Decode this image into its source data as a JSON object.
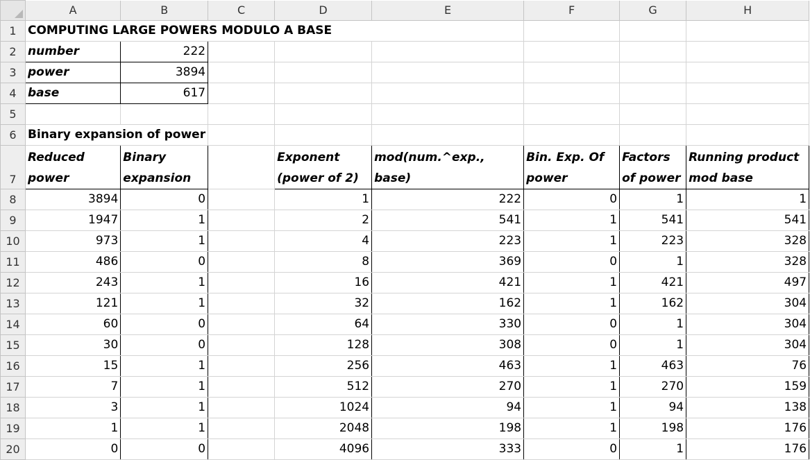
{
  "columns": [
    "A",
    "B",
    "C",
    "D",
    "E",
    "F",
    "G",
    "H"
  ],
  "rows": [
    "1",
    "2",
    "3",
    "4",
    "5",
    "6",
    "7",
    "8",
    "9",
    "10",
    "11",
    "12",
    "13",
    "14",
    "15",
    "16",
    "17",
    "18",
    "19",
    "20"
  ],
  "title": "COMPUTING LARGE POWERS MODULO A BASE",
  "inputs": [
    {
      "label": "number",
      "value": "222"
    },
    {
      "label": "power",
      "value": "3894"
    },
    {
      "label": "base",
      "value": "617"
    }
  ],
  "section_label": "Binary expansion of power",
  "headers": {
    "a": "Reduced power",
    "b": "Binary expansion",
    "d": "Exponent (power of 2)",
    "e": "mod(num.^exp., base)",
    "f": "Bin. Exp. Of power",
    "g": "Factors of power",
    "h": "Running product mod base"
  },
  "data_rows": [
    [
      "3894",
      "0",
      "1",
      "222",
      "0",
      "1",
      "1"
    ],
    [
      "1947",
      "1",
      "2",
      "541",
      "1",
      "541",
      "541"
    ],
    [
      "973",
      "1",
      "4",
      "223",
      "1",
      "223",
      "328"
    ],
    [
      "486",
      "0",
      "8",
      "369",
      "0",
      "1",
      "328"
    ],
    [
      "243",
      "1",
      "16",
      "421",
      "1",
      "421",
      "497"
    ],
    [
      "121",
      "1",
      "32",
      "162",
      "1",
      "162",
      "304"
    ],
    [
      "60",
      "0",
      "64",
      "330",
      "0",
      "1",
      "304"
    ],
    [
      "30",
      "0",
      "128",
      "308",
      "0",
      "1",
      "304"
    ],
    [
      "15",
      "1",
      "256",
      "463",
      "1",
      "463",
      "76"
    ],
    [
      "7",
      "1",
      "512",
      "270",
      "1",
      "270",
      "159"
    ],
    [
      "3",
      "1",
      "1024",
      "94",
      "1",
      "94",
      "138"
    ],
    [
      "1",
      "1",
      "2048",
      "198",
      "1",
      "198",
      "176"
    ],
    [
      "0",
      "0",
      "4096",
      "333",
      "0",
      "1",
      "176"
    ]
  ]
}
